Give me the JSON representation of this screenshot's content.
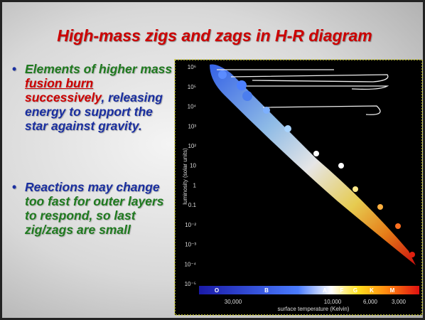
{
  "title": "High-mass zigs and zags in H-R diagram",
  "bullets": [
    {
      "segments": [
        {
          "text": "Elements of higher mass ",
          "color": "#1f7a1f",
          "underline": false
        },
        {
          "text": "fusion burn",
          "color": "#cc0000",
          "underline": true
        },
        {
          "text": " successively",
          "color": "#cc0000",
          "underline": false
        },
        {
          "text": ", releasing energy to support the star against gravity.",
          "color": "#1a2fa0",
          "underline": false
        }
      ]
    },
    {
      "segments": [
        {
          "text": "Reactions may change ",
          "color": "#1a2fa0",
          "underline": false
        },
        {
          "text": "too fast for outer layers to respond, so last zig/zags are small",
          "color": "#1f7a1f",
          "underline": false
        }
      ]
    }
  ],
  "figure": {
    "y_label": "luminosity (solar units)",
    "y_ticks": [
      "10⁶",
      "10⁵",
      "10⁴",
      "10³",
      "10²",
      "10",
      "1",
      "0.1",
      "10⁻²",
      "10⁻³",
      "10⁻⁴",
      "10⁻⁵"
    ],
    "spectral_classes": [
      "O",
      "B",
      "A",
      "F",
      "G",
      "K",
      "M"
    ],
    "x_ticks": [
      "30,000",
      "10,000",
      "6,000",
      "3,000"
    ],
    "x_label": "surface temperature (Kelvin)"
  }
}
